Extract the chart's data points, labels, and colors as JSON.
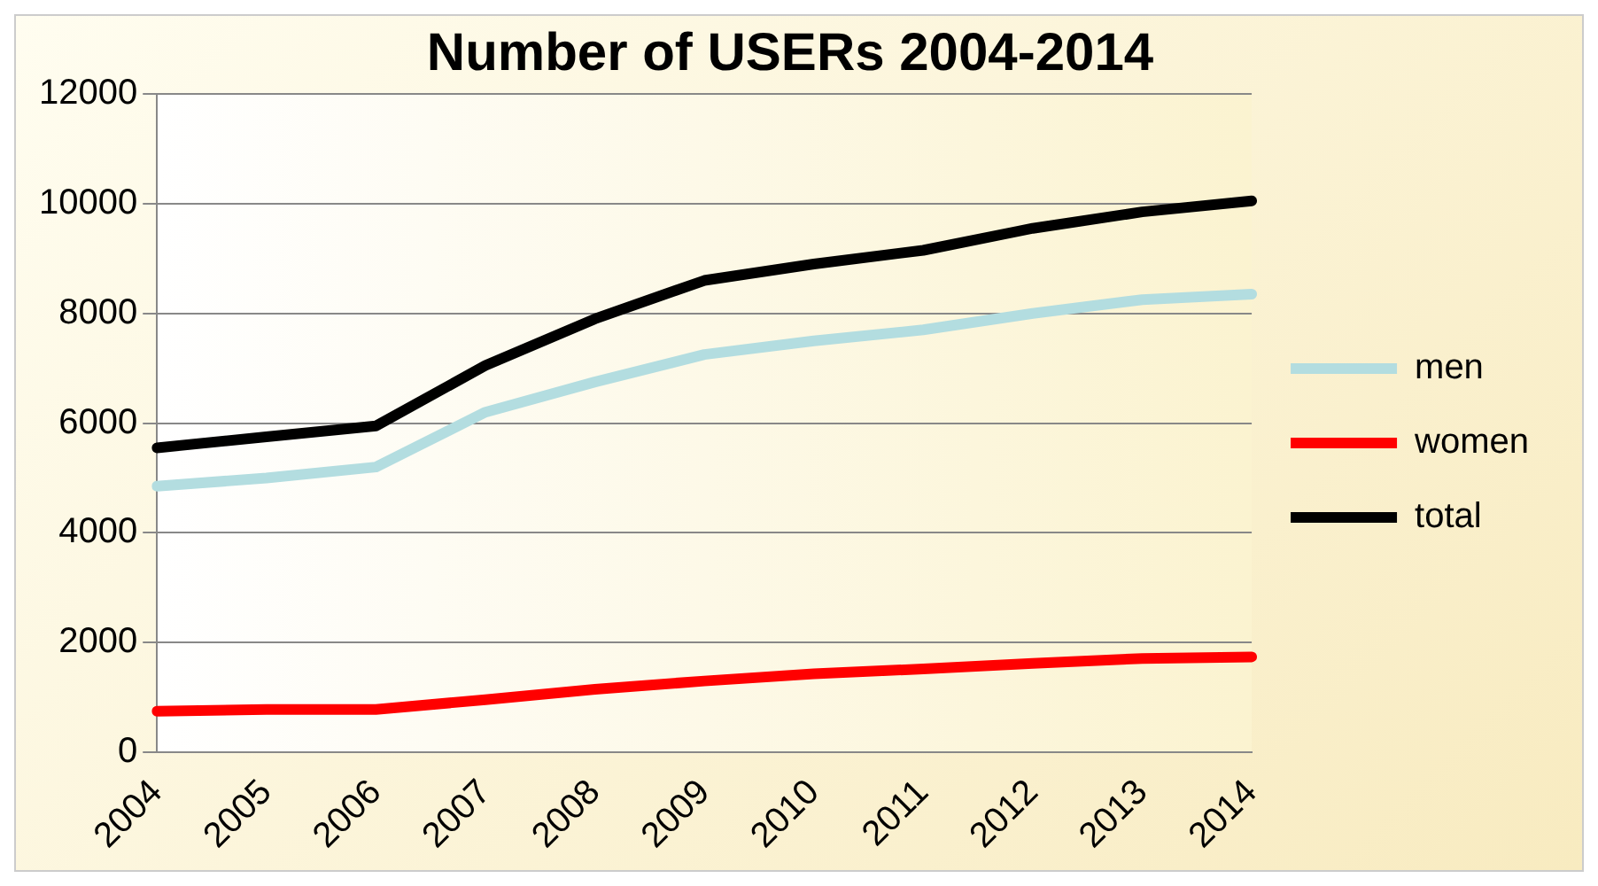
{
  "chart_data": {
    "type": "line",
    "title": "Number of USERs 2004-2014",
    "categories": [
      "2004",
      "2005",
      "2006",
      "2007",
      "2008",
      "2009",
      "2010",
      "2011",
      "2012",
      "2013",
      "2014"
    ],
    "series": [
      {
        "name": "men",
        "color": "#b3dde0",
        "values": [
          4850,
          5000,
          5200,
          6200,
          6750,
          7250,
          7500,
          7700,
          8000,
          8250,
          8350
        ]
      },
      {
        "name": "women",
        "color": "#ff0000",
        "values": [
          750,
          780,
          780,
          960,
          1150,
          1300,
          1430,
          1520,
          1620,
          1710,
          1740
        ]
      },
      {
        "name": "total",
        "color": "#000000",
        "values": [
          5550,
          5750,
          5950,
          7050,
          7900,
          8600,
          8900,
          9150,
          9550,
          9850,
          10050
        ]
      }
    ],
    "ylim": [
      0,
      12000
    ],
    "yticks": [
      0,
      2000,
      4000,
      6000,
      8000,
      10000,
      12000
    ],
    "grid": "y",
    "legend": "right",
    "marker": "none",
    "line_style": "solid"
  }
}
